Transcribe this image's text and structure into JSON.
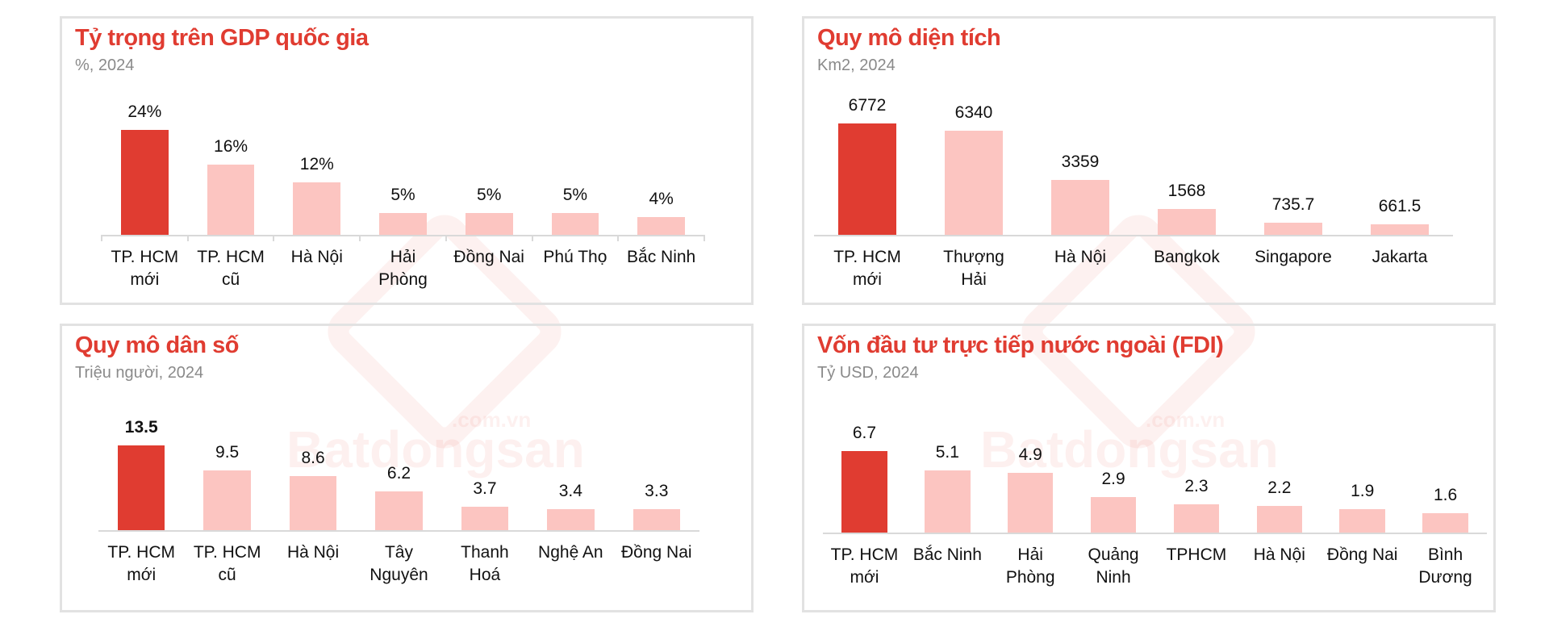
{
  "colors": {
    "highlight": "#e03c31",
    "normal": "#fcc5c1",
    "title": "#e03c31",
    "subtitle": "#8a8a8a"
  },
  "watermark": {
    "brand": "Batdongsan",
    "domain": ".com.vn"
  },
  "chart_data": [
    {
      "type": "bar",
      "title": "Tỷ trọng trên GDP quốc gia",
      "subtitle": "%, 2024",
      "categories": [
        "TP. HCM\nmới",
        "TP. HCM\ncũ",
        "Hà Nội",
        "Hải\nPhòng",
        "Đồng Nai",
        "Phú Thọ",
        "Bắc Ninh"
      ],
      "values": [
        24,
        16,
        12,
        5,
        5,
        5,
        4
      ],
      "value_labels": [
        "24%",
        "16%",
        "12%",
        "5%",
        "5%",
        "5%",
        "4%"
      ],
      "highlight_index": 0,
      "axis_ticks": true
    },
    {
      "type": "bar",
      "title": "Quy mô diện tích",
      "subtitle": "Km2, 2024",
      "categories": [
        "TP. HCM\nmới",
        "Thượng Hải",
        "Hà Nội",
        "Bangkok",
        "Singapore",
        "Jakarta"
      ],
      "values": [
        6772,
        6340,
        3359,
        1568,
        735.7,
        661.5
      ],
      "value_labels": [
        "6772",
        "6340",
        "3359",
        "1568",
        "735.7",
        "661.5"
      ],
      "highlight_index": 0,
      "axis_ticks": false
    },
    {
      "type": "bar",
      "title": "Quy mô dân số",
      "subtitle": "Triệu người, 2024",
      "categories": [
        "TP. HCM\nmới",
        "TP. HCM\ncũ",
        "Hà Nội",
        "Tây\nNguyên",
        "Thanh\nHoá",
        "Nghệ An",
        "Đồng Nai"
      ],
      "values": [
        13.5,
        9.5,
        8.6,
        6.2,
        3.7,
        3.4,
        3.3
      ],
      "value_labels": [
        "13.5",
        "9.5",
        "8.6",
        "6.2",
        "3.7",
        "3.4",
        "3.3"
      ],
      "highlight_index": 0,
      "bold_highlight_label": true,
      "axis_ticks": false
    },
    {
      "type": "bar",
      "title": "Vốn đầu tư trực tiếp nước ngoài (FDI)",
      "subtitle": "Tỷ USD, 2024",
      "categories": [
        "TP. HCM\nmới",
        "Bắc Ninh",
        "Hải\nPhòng",
        "Quảng\nNinh",
        "TPHCM",
        "Hà Nội",
        "Đồng Nai",
        "Bình\nDương"
      ],
      "values": [
        6.7,
        5.1,
        4.9,
        2.9,
        2.3,
        2.2,
        1.9,
        1.6
      ],
      "value_labels": [
        "6.7",
        "5.1",
        "4.9",
        "2.9",
        "2.3",
        "2.2",
        "1.9",
        "1.6"
      ],
      "highlight_index": 0,
      "axis_ticks": false
    }
  ]
}
